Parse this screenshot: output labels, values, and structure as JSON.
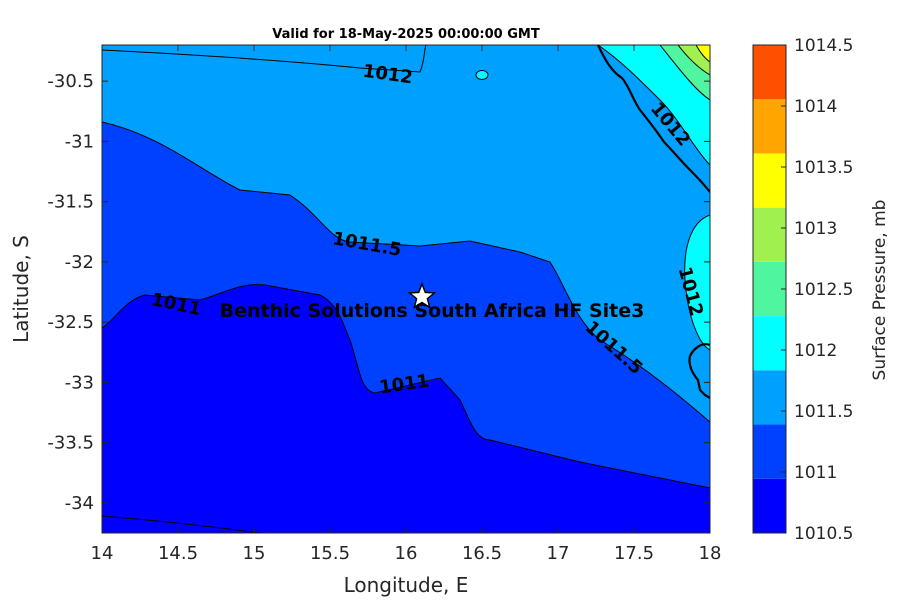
{
  "chart_data": {
    "type": "filled-contour-map",
    "title": "Valid for 18-May-2025 00:00:00 GMT",
    "xlabel": "Longitude, E",
    "ylabel": "Latitude, S",
    "xlim": [
      14,
      18
    ],
    "ylim": [
      -34.25,
      -30.2
    ],
    "x_ticks": [
      "14",
      "14.5",
      "15",
      "15.5",
      "16",
      "16.5",
      "17",
      "17.5",
      "18"
    ],
    "x_tick_values": [
      14,
      14.5,
      15,
      15.5,
      16,
      16.5,
      17,
      17.5,
      18
    ],
    "y_ticks": [
      "-30.5",
      "-31",
      "-31.5",
      "-32",
      "-32.5",
      "-33",
      "-33.5",
      "-34"
    ],
    "y_tick_values": [
      -30.5,
      -31,
      -31.5,
      -32,
      -32.5,
      -33,
      -33.5,
      -34
    ],
    "colorbar": {
      "label": "Surface Pressure, mb",
      "range": [
        1010.5,
        1014.5
      ],
      "ticks": [
        "1010.5",
        "1011",
        "1011.5",
        "1012",
        "1012.5",
        "1013",
        "1013.5",
        "1014",
        "1014.5"
      ],
      "tick_values": [
        1010.5,
        1011,
        1011.5,
        1012,
        1012.5,
        1013,
        1013.5,
        1014,
        1014.5
      ],
      "levels": [
        1010.5,
        1010.75,
        1011,
        1011.25,
        1011.5,
        1011.75,
        1012,
        1012.25,
        1012.5,
        1012.75,
        1013,
        1013.25,
        1013.5,
        1013.75,
        1014,
        1014.25,
        1014.5
      ],
      "colors": [
        "#0000ff",
        "#0040ff",
        "#00a0ff",
        "#00ffff",
        "#50f5a0",
        "#a0f050",
        "#ffff00",
        "#ffa500",
        "#ff5000"
      ]
    },
    "contour_labels": [
      {
        "text": "1012",
        "lon": 15.87,
        "lat": -30.5
      },
      {
        "text": "1012",
        "lon": 17.77,
        "lat": -30.9
      },
      {
        "text": "1011.5",
        "lon": 15.75,
        "lat": -31.9
      },
      {
        "text": "1012",
        "lon": 17.83,
        "lat": -32.3
      },
      {
        "text": "1011.5",
        "lon": 17.35,
        "lat": -32.75
      },
      {
        "text": "1011",
        "lon": 14.45,
        "lat": -32.38
      },
      {
        "text": "1011",
        "lon": 16.0,
        "lat": -33.02
      }
    ],
    "site": {
      "name": "Benthic Solutions South Africa HF Site3",
      "lon": 16.1,
      "lat": -32.3
    }
  }
}
